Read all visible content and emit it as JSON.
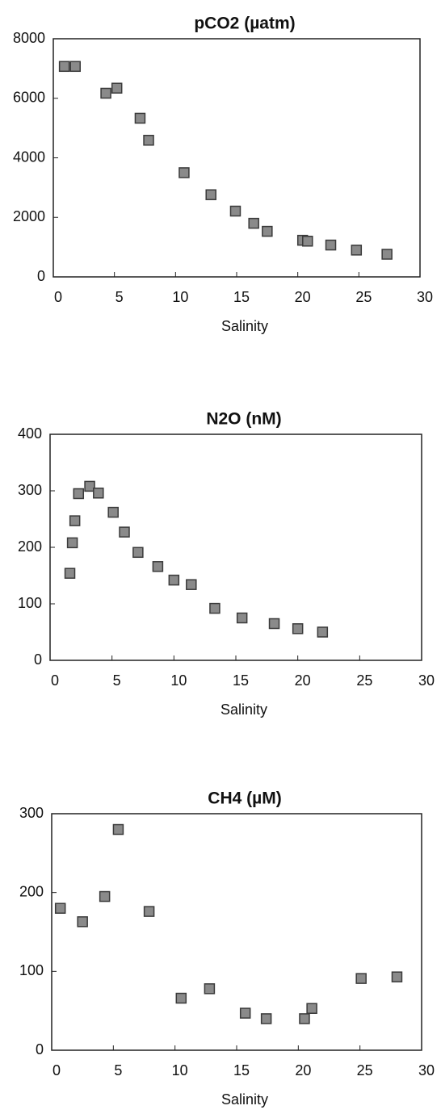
{
  "chart_data": [
    {
      "type": "scatter",
      "title": "pCO2 (µatm)",
      "x_label": "Salinity",
      "color": "#8a8a8a",
      "x": [
        0.9,
        1.8,
        4.3,
        5.2,
        7.1,
        7.8,
        10.7,
        12.9,
        14.9,
        16.4,
        17.5,
        20.4,
        20.8,
        22.7,
        24.8,
        27.3
      ],
      "values": [
        7070,
        7070,
        6170,
        6340,
        5330,
        4590,
        3500,
        2760,
        2210,
        1800,
        1530,
        1230,
        1200,
        1070,
        900,
        760
      ],
      "xlim": [
        0,
        30
      ],
      "xticks": [
        0,
        5,
        10,
        15,
        20,
        25,
        30
      ],
      "ylim": [
        0,
        8000
      ],
      "yticks": [
        0,
        2000,
        4000,
        6000,
        8000
      ]
    },
    {
      "type": "scatter",
      "title": "N2O (nM)",
      "x_label": "Salinity",
      "color": "#8a8a8a",
      "x": [
        1.6,
        1.8,
        2.0,
        2.3,
        3.2,
        3.9,
        5.1,
        6.0,
        7.1,
        8.7,
        10.0,
        11.4,
        13.3,
        15.5,
        18.1,
        20.0,
        22.0
      ],
      "values": [
        154,
        208,
        247,
        295,
        308,
        296,
        262,
        227,
        191,
        166,
        142,
        134,
        92,
        75,
        65,
        56,
        50
      ],
      "xlim": [
        0,
        30
      ],
      "xticks": [
        0,
        5,
        10,
        15,
        20,
        25,
        30
      ],
      "ylim": [
        0,
        400
      ],
      "yticks": [
        0,
        100,
        200,
        300,
        400
      ]
    },
    {
      "type": "scatter",
      "title": "CH4 (µM)",
      "x_label": "Salinity",
      "color": "#8a8a8a",
      "x": [
        0.7,
        2.5,
        4.3,
        5.4,
        7.9,
        10.5,
        12.8,
        15.7,
        17.4,
        20.5,
        21.1,
        25.1,
        28.0
      ],
      "values": [
        180,
        163,
        195,
        280,
        176,
        66,
        78,
        47,
        40,
        40,
        53,
        91,
        93
      ],
      "xlim": [
        0,
        30
      ],
      "xticks": [
        0,
        5,
        10,
        15,
        20,
        25,
        30
      ],
      "ylim": [
        0,
        300
      ],
      "yticks": [
        0,
        100,
        200,
        300
      ]
    }
  ]
}
